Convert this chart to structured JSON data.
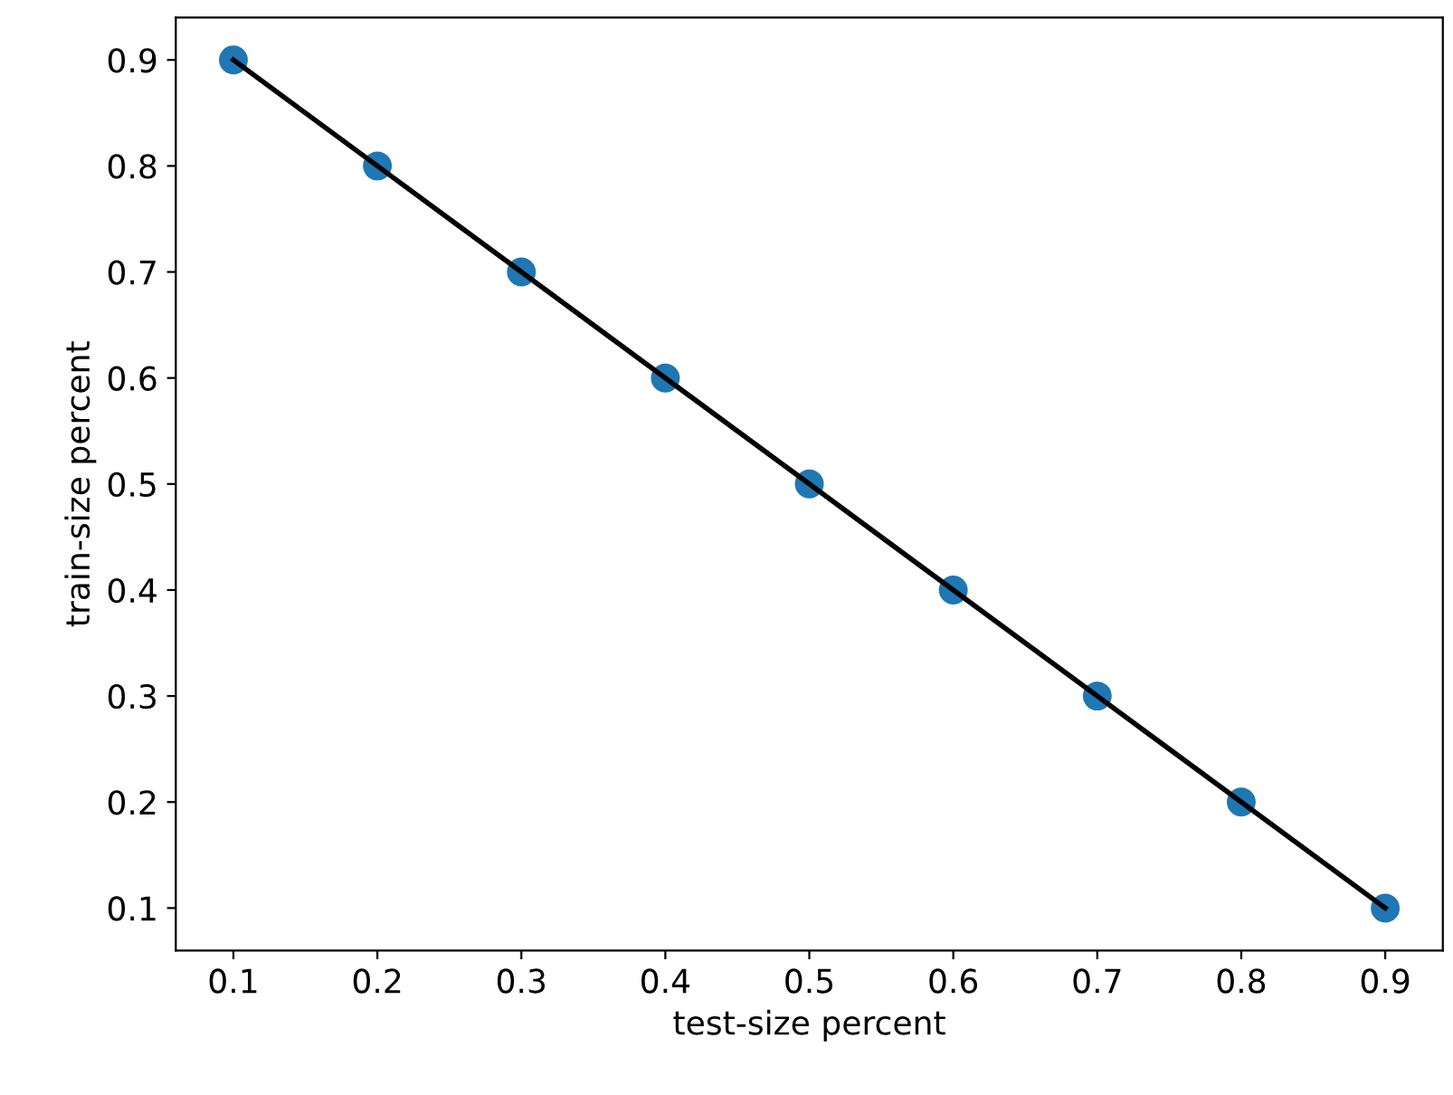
{
  "chart_data": {
    "type": "scatter",
    "xlabel": "test-size percent",
    "ylabel": "train-size percent",
    "x": [
      0.1,
      0.2,
      0.3,
      0.4,
      0.5,
      0.6,
      0.7,
      0.8,
      0.9
    ],
    "series": [
      {
        "color": "#1f77b4",
        "marker": "circle",
        "values": [
          0.9,
          0.8,
          0.7,
          0.6,
          0.5,
          0.4,
          0.3,
          0.2,
          0.1
        ]
      },
      {
        "type": "line",
        "color": "#000000",
        "marker": "none",
        "line_style": "solid",
        "values": [
          0.9,
          0.8,
          0.7,
          0.6,
          0.5,
          0.4,
          0.3,
          0.2,
          0.1
        ]
      }
    ],
    "xlim": [
      0.06,
      0.94
    ],
    "ylim": [
      0.06,
      0.94
    ],
    "xticks": [
      0.1,
      0.2,
      0.3,
      0.4,
      0.5,
      0.6,
      0.7,
      0.8,
      0.9
    ],
    "yticks": [
      0.1,
      0.2,
      0.3,
      0.4,
      0.5,
      0.6,
      0.7,
      0.8,
      0.9
    ],
    "grid": false
  }
}
